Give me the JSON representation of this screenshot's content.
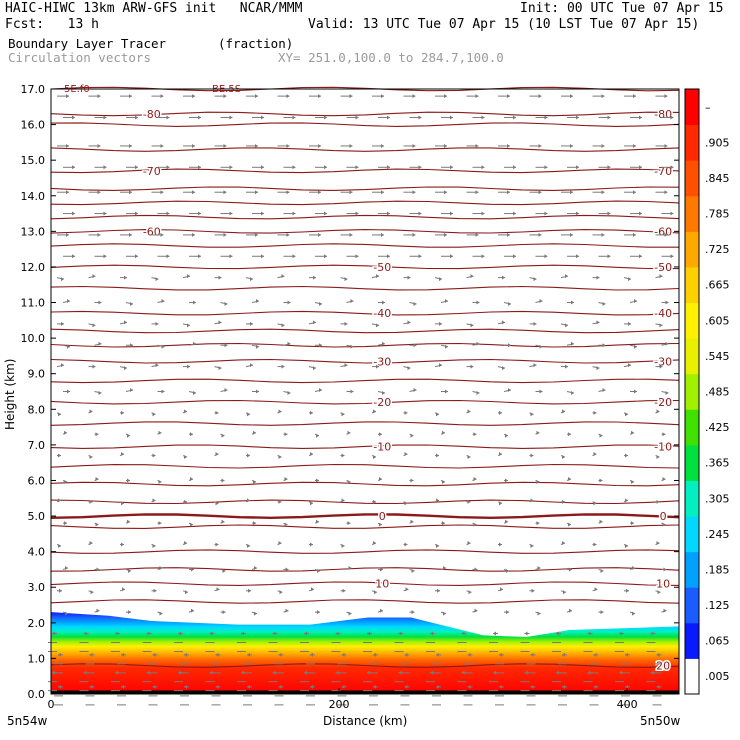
{
  "header": {
    "title_left": "HAIC-HIWC 13km ARW-GFS init   NCAR/MMM",
    "init": "Init: 00 UTC Tue 07 Apr 15",
    "fcst": "Fcst:   13 h",
    "valid": "Valid: 13 UTC Tue 07 Apr 15 (10 LST Tue 07 Apr 15)",
    "field": "Boundary Layer Tracer",
    "units": "(fraction)",
    "vectors": "Circulation vectors",
    "xy": "XY= 251.0,100.0 to 284.7,100.0"
  },
  "axes": {
    "ylabel": "Height (km)",
    "xlabel": "Distance (km)",
    "left_end": "5n54w",
    "right_end": "5n50w",
    "corner_left": "5E.f0",
    "corner_mid": "BE.5S"
  },
  "colors": {
    "contour": "#8b1a1a",
    "vector": "#7a7a7a"
  },
  "chart_data": {
    "type": "heatmap",
    "title": "Boundary Layer Tracer",
    "xlabel": "Distance (km)",
    "ylabel": "Height (km)",
    "xlim": [
      0,
      436
    ],
    "ylim": [
      0,
      17
    ],
    "x_ticks": [
      "0",
      "200",
      "400"
    ],
    "x_tick_values": [
      0,
      200,
      400
    ],
    "y_ticks": [
      "0.0",
      "1.0",
      "2.0",
      "3.0",
      "4.0",
      "5.0",
      "6.0",
      "7.0",
      "8.0",
      "9.0",
      "10.0",
      "11.0",
      "12.0",
      "13.0",
      "14.0",
      "15.0",
      "16.0",
      "17.0"
    ],
    "colorbar": {
      "labels": [
        ".005",
        ".065",
        ".125",
        ".185",
        ".245",
        ".305",
        ".365",
        ".425",
        ".485",
        ".545",
        ".605",
        ".665",
        ".725",
        ".785",
        ".845",
        ".905",
        "–"
      ],
      "colors": [
        "#ffffff",
        "#0a1aff",
        "#1a5cff",
        "#00a0ff",
        "#00d8ff",
        "#00f0c0",
        "#00e040",
        "#40e000",
        "#a0f000",
        "#e8f000",
        "#fff000",
        "#ffd000",
        "#ffa800",
        "#ff7800",
        "#ff5000",
        "#ff2a00",
        "#ff0000"
      ]
    },
    "tracer_top_km": {
      "x": [
        0,
        40,
        70,
        130,
        180,
        220,
        250,
        270,
        300,
        330,
        360,
        400,
        436
      ],
      "y": [
        2.3,
        2.2,
        2.05,
        1.95,
        1.95,
        2.15,
        2.15,
        1.95,
        1.65,
        1.6,
        1.8,
        1.85,
        1.9
      ]
    },
    "temperature_contours": [
      {
        "label": "-80",
        "km": 16.3
      },
      {
        "label": "-70",
        "km": 14.7
      },
      {
        "label": "-60",
        "km": 13.0
      },
      {
        "label": "-50",
        "km": 12.0
      },
      {
        "label": "-40",
        "km": 10.7
      },
      {
        "label": "-30",
        "km": 9.35
      },
      {
        "label": "-20",
        "km": 8.2
      },
      {
        "label": "-10",
        "km": 6.95
      },
      {
        "label": "0",
        "km": 5.0
      },
      {
        "label": "10",
        "km": 3.1
      },
      {
        "label": "20",
        "km": 0.8
      }
    ],
    "extra_contour_km": [
      17.0,
      16.0,
      15.3,
      14.2,
      13.8,
      13.4,
      12.6,
      11.4,
      10.2,
      9.8,
      8.8,
      7.6,
      6.4,
      5.9,
      5.4,
      4.7,
      4.0,
      3.5,
      2.6
    ],
    "vector_rows_km": [
      16.8,
      16.2,
      15.4,
      14.8,
      14.1,
      13.5,
      12.9,
      12.3,
      11.7,
      11.0,
      10.4,
      9.8,
      9.2,
      8.5,
      7.9,
      7.3,
      6.7,
      6.0,
      5.4,
      4.8,
      4.2,
      3.5,
      2.9,
      2.3,
      1.7,
      1.1,
      0.6,
      0.2
    ]
  }
}
